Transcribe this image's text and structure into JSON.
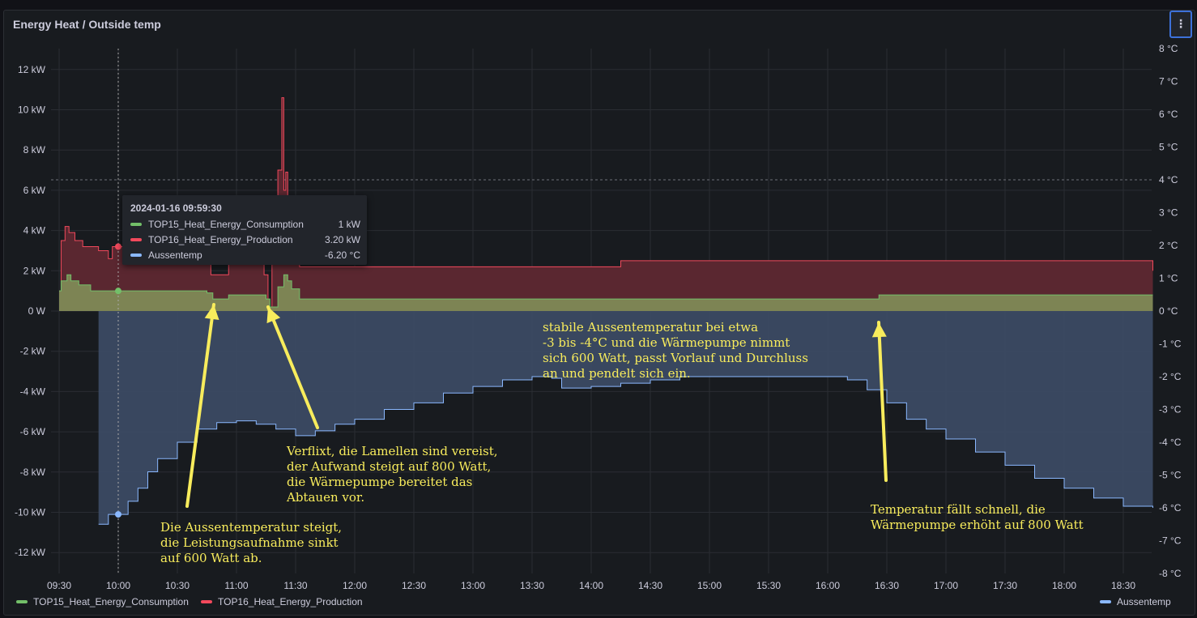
{
  "panel": {
    "title": "Energy Heat / Outside temp",
    "menu_icon": "kebab-menu-icon"
  },
  "colors": {
    "consumption": "#73bf69",
    "production": "#f2495c",
    "temp": "#8ab8ff",
    "annotation": "#f8ec5c"
  },
  "chart_data": {
    "type": "area",
    "x_ticks": [
      "09:30",
      "10:00",
      "10:30",
      "11:00",
      "11:30",
      "12:00",
      "12:30",
      "13:00",
      "13:30",
      "14:00",
      "14:30",
      "15:00",
      "15:30",
      "16:00",
      "16:30",
      "17:00",
      "17:30",
      "18:00",
      "18:30"
    ],
    "y_left_ticks": [
      "12 kW",
      "10 kW",
      "8 kW",
      "6 kW",
      "4 kW",
      "2 kW",
      "0 W",
      "-2 kW",
      "-4 kW",
      "-6 kW",
      "-8 kW",
      "-10 kW",
      "-12 kW"
    ],
    "y_right_ticks": [
      "8 °C",
      "7 °C",
      "6 °C",
      "5 °C",
      "4 °C",
      "3 °C",
      "2 °C",
      "1 °C",
      "0 °C",
      "-1 °C",
      "-2 °C",
      "-3 °C",
      "-4 °C",
      "-5 °C",
      "-6 °C",
      "-7 °C",
      "-8 °C"
    ],
    "y_left_range_kw": [
      -13,
      13
    ],
    "y_right_range_c": [
      -8,
      8
    ],
    "threshold_c": 4,
    "cursor_time": "10:00",
    "series": [
      {
        "name": "TOP15_Heat_Energy_Consumption",
        "unit": "kW",
        "points": [
          [
            "09:30",
            1.0
          ],
          [
            "09:31",
            1.5
          ],
          [
            "09:34",
            1.8
          ],
          [
            "09:36",
            1.5
          ],
          [
            "09:40",
            1.3
          ],
          [
            "09:46",
            1.0
          ],
          [
            "10:00",
            1.0
          ],
          [
            "10:30",
            1.0
          ],
          [
            "10:45",
            0.9
          ],
          [
            "10:48",
            0.6
          ],
          [
            "10:53",
            0.6
          ],
          [
            "10:56",
            0.8
          ],
          [
            "11:10",
            0.8
          ],
          [
            "11:15",
            0.6
          ],
          [
            "11:17",
            0.2
          ],
          [
            "11:19",
            0.2
          ],
          [
            "11:21",
            1.2
          ],
          [
            "11:24",
            1.8
          ],
          [
            "11:26",
            1.5
          ],
          [
            "11:28",
            1.1
          ],
          [
            "11:32",
            0.6
          ],
          [
            "12:00",
            0.6
          ],
          [
            "13:00",
            0.6
          ],
          [
            "14:00",
            0.6
          ],
          [
            "15:00",
            0.6
          ],
          [
            "16:00",
            0.6
          ],
          [
            "16:25",
            0.6
          ],
          [
            "16:26",
            0.8
          ],
          [
            "17:00",
            0.8
          ],
          [
            "18:00",
            0.8
          ],
          [
            "18:45",
            0.8
          ]
        ]
      },
      {
        "name": "TOP16_Heat_Energy_Production",
        "unit": "kW",
        "points": [
          [
            "09:30",
            1.0
          ],
          [
            "09:31",
            3.5
          ],
          [
            "09:33",
            4.2
          ],
          [
            "09:35",
            3.9
          ],
          [
            "09:38",
            3.5
          ],
          [
            "09:42",
            3.2
          ],
          [
            "09:50",
            3.0
          ],
          [
            "09:55",
            2.6
          ],
          [
            "09:57",
            3.2
          ],
          [
            "10:00",
            3.2
          ],
          [
            "10:10",
            3.3
          ],
          [
            "10:20",
            2.9
          ],
          [
            "10:35",
            2.5
          ],
          [
            "10:47",
            1.8
          ],
          [
            "10:53",
            1.8
          ],
          [
            "10:56",
            2.4
          ],
          [
            "11:10",
            2.4
          ],
          [
            "11:14",
            1.8
          ],
          [
            "11:16",
            0.2
          ],
          [
            "11:18",
            3.0
          ],
          [
            "11:21",
            7.0
          ],
          [
            "11:23",
            10.6
          ],
          [
            "11:24",
            6.0
          ],
          [
            "11:25",
            6.9
          ],
          [
            "11:26",
            3.5
          ],
          [
            "11:28",
            2.6
          ],
          [
            "11:32",
            2.2
          ],
          [
            "12:00",
            2.2
          ],
          [
            "13:00",
            2.2
          ],
          [
            "14:00",
            2.2
          ],
          [
            "14:15",
            2.5
          ],
          [
            "15:00",
            2.5
          ],
          [
            "16:00",
            2.5
          ],
          [
            "17:00",
            2.5
          ],
          [
            "18:00",
            2.5
          ],
          [
            "18:45",
            2.0
          ]
        ]
      },
      {
        "name": "Aussentemp",
        "unit": "°C",
        "points": [
          [
            "09:50",
            -6.5
          ],
          [
            "09:55",
            -6.2
          ],
          [
            "10:05",
            -5.8
          ],
          [
            "10:10",
            -5.4
          ],
          [
            "10:15",
            -4.9
          ],
          [
            "10:20",
            -4.5
          ],
          [
            "10:30",
            -4.0
          ],
          [
            "10:40",
            -3.6
          ],
          [
            "10:50",
            -3.4
          ],
          [
            "11:00",
            -3.35
          ],
          [
            "11:10",
            -3.45
          ],
          [
            "11:20",
            -3.6
          ],
          [
            "11:30",
            -3.8
          ],
          [
            "11:40",
            -3.65
          ],
          [
            "11:50",
            -3.45
          ],
          [
            "12:00",
            -3.3
          ],
          [
            "12:15",
            -3.0
          ],
          [
            "12:30",
            -2.8
          ],
          [
            "12:45",
            -2.5
          ],
          [
            "13:00",
            -2.3
          ],
          [
            "13:15",
            -2.1
          ],
          [
            "13:30",
            -2.0
          ],
          [
            "13:40",
            -2.05
          ],
          [
            "13:45",
            -2.35
          ],
          [
            "14:00",
            -2.3
          ],
          [
            "14:15",
            -2.2
          ],
          [
            "14:30",
            -2.1
          ],
          [
            "14:45",
            -2.0
          ],
          [
            "15:00",
            -2.0
          ],
          [
            "15:30",
            -2.0
          ],
          [
            "16:00",
            -2.0
          ],
          [
            "16:10",
            -2.1
          ],
          [
            "16:20",
            -2.4
          ],
          [
            "16:30",
            -2.8
          ],
          [
            "16:40",
            -3.3
          ],
          [
            "16:50",
            -3.6
          ],
          [
            "17:00",
            -3.9
          ],
          [
            "17:15",
            -4.3
          ],
          [
            "17:30",
            -4.7
          ],
          [
            "17:45",
            -5.1
          ],
          [
            "18:00",
            -5.4
          ],
          [
            "18:15",
            -5.7
          ],
          [
            "18:30",
            -5.95
          ],
          [
            "18:45",
            -6.0
          ]
        ]
      }
    ]
  },
  "tooltip": {
    "time": "2024-01-16 09:59:30",
    "rows": [
      {
        "name": "TOP15_Heat_Energy_Consumption",
        "value": "1 kW"
      },
      {
        "name": "TOP16_Heat_Energy_Production",
        "value": "3.20 kW"
      },
      {
        "name": "Aussentemp",
        "value": "-6.20 °C"
      }
    ]
  },
  "legend": {
    "consumption": "TOP15_Heat_Energy_Consumption",
    "production": "TOP16_Heat_Energy_Production",
    "temp": "Aussentemp"
  },
  "annotations": {
    "stable": "stabile Aussentemperatur bei etwa\n-3 bis -4°C und die Wärmepumpe nimmt\nsich 600 Watt, passt Vorlauf und Durchluss\nan und pendelt sich ein.",
    "frozen": "Verflixt, die Lamellen sind vereist,\nder Aufwand steigt auf 800 Watt,\ndie Wärmepumpe bereitet das\nAbtauen vor.",
    "rising": "Die Aussentemperatur steigt,\ndie Leistungsaufnahme sinkt\nauf 600 Watt ab.",
    "falling": "Temperatur fällt schnell, die\nWärmepumpe erhöht auf 800 Watt"
  }
}
